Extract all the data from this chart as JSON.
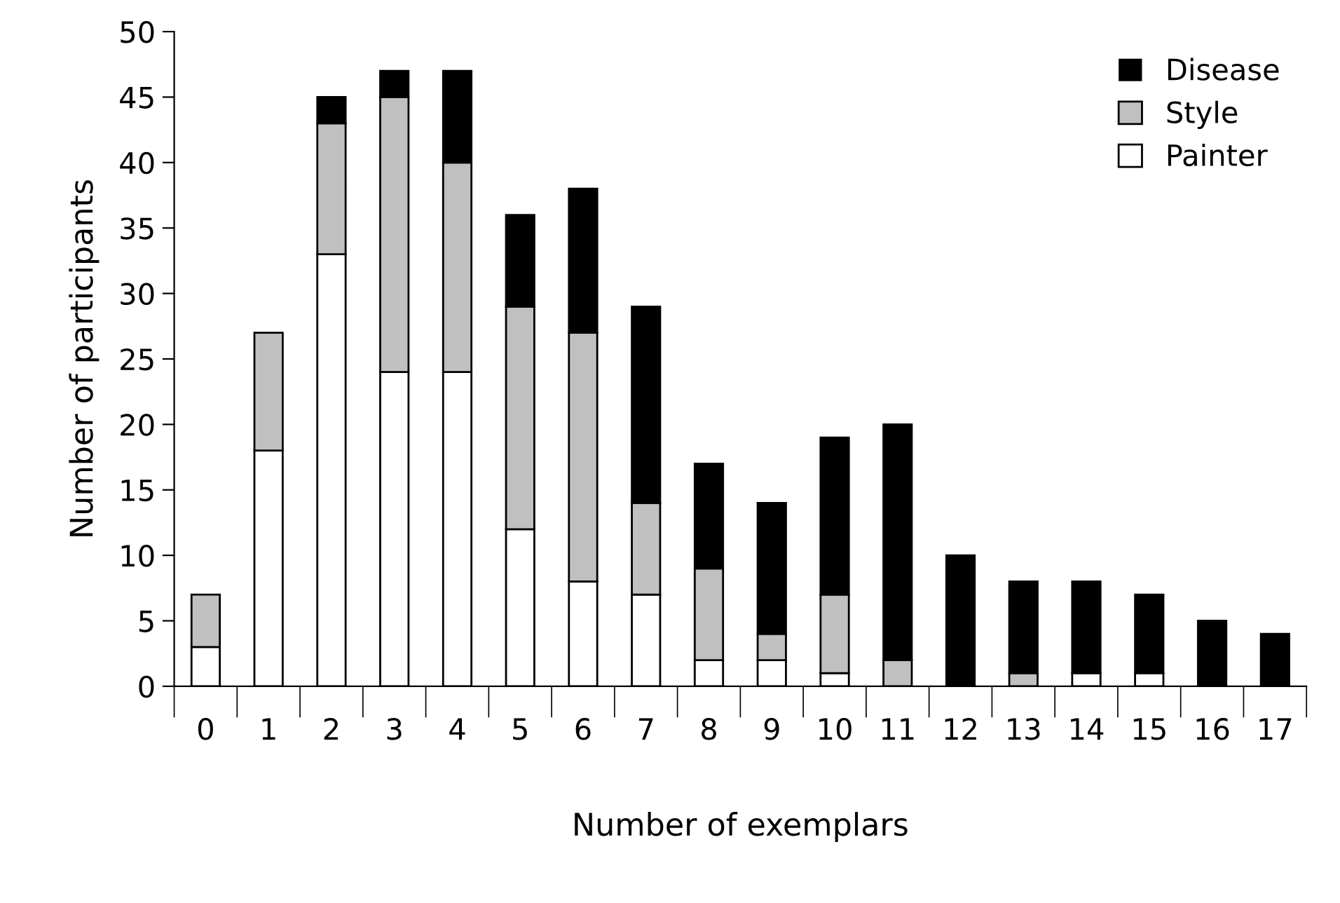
{
  "chart_data": {
    "type": "bar",
    "stacked": true,
    "xlabel": "Number of exemplars",
    "ylabel": "Number of participants",
    "categories": [
      "0",
      "1",
      "2",
      "3",
      "4",
      "5",
      "6",
      "7",
      "8",
      "9",
      "10",
      "11",
      "12",
      "13",
      "14",
      "15",
      "16",
      "17"
    ],
    "series": [
      {
        "name": "Painter",
        "color": "#ffffff",
        "values": [
          3,
          18,
          33,
          24,
          24,
          12,
          8,
          7,
          2,
          2,
          1,
          0,
          0,
          0,
          1,
          1,
          0,
          0
        ]
      },
      {
        "name": "Style",
        "color": "#c0c0c0",
        "values": [
          4,
          9,
          10,
          21,
          16,
          17,
          19,
          7,
          7,
          2,
          6,
          2,
          0,
          1,
          0,
          0,
          0,
          0
        ]
      },
      {
        "name": "Disease",
        "color": "#000000",
        "values": [
          0,
          0,
          2,
          2,
          7,
          7,
          11,
          15,
          8,
          10,
          12,
          18,
          10,
          7,
          7,
          6,
          5,
          4
        ]
      }
    ],
    "ylim": [
      0,
      50
    ],
    "yticks": [
      0,
      5,
      10,
      15,
      20,
      25,
      30,
      35,
      40,
      45,
      50
    ],
    "grid": false,
    "legend": "top right"
  }
}
